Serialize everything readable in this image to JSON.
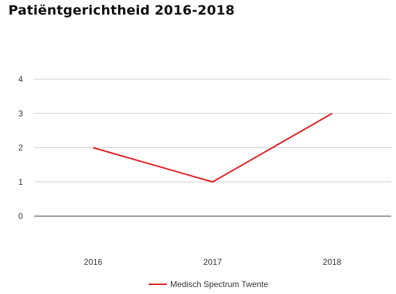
{
  "page": {
    "title": "Patiëntgerichtheid 2016-2018"
  },
  "colors": {
    "series": "#e3151a",
    "grid": "#cccccc",
    "baseline": "#333333"
  },
  "chart_data": {
    "type": "line",
    "title": "Patiëntgerichtheid 2016-2018",
    "xlabel": "",
    "ylabel": "",
    "categories": [
      "2016",
      "2017",
      "2018"
    ],
    "series": [
      {
        "name": "Medisch Spectrum Twente",
        "values": [
          2,
          1,
          3
        ],
        "color": "#e3151a"
      }
    ],
    "ylim": [
      0,
      4
    ],
    "yticks": [
      0,
      1,
      2,
      3,
      4
    ],
    "grid": true,
    "legend": "bottom-center"
  }
}
